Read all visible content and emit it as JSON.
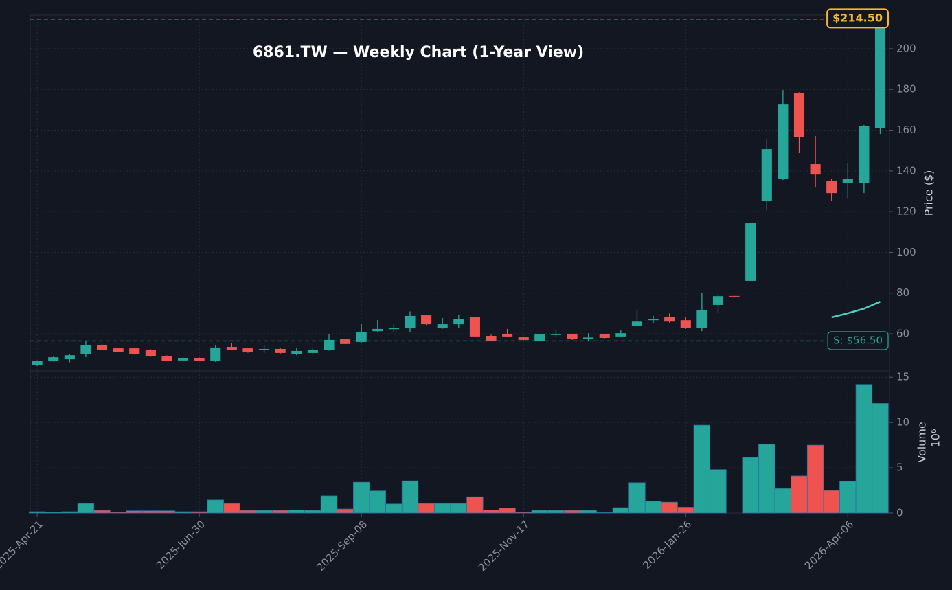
{
  "chart_data": [
    {
      "type": "candlestick",
      "title": "6861.TW — Weekly Chart (1-Year View)",
      "y_label": "Price ($)",
      "x": [
        "2025-04-21",
        "2025-04-28",
        "2025-05-05",
        "2025-05-12",
        "2025-05-19",
        "2025-05-26",
        "2025-06-02",
        "2025-06-09",
        "2025-06-16",
        "2025-06-23",
        "2025-06-30",
        "2025-07-07",
        "2025-07-14",
        "2025-07-21",
        "2025-07-28",
        "2025-08-04",
        "2025-08-11",
        "2025-08-18",
        "2025-08-25",
        "2025-09-01",
        "2025-09-08",
        "2025-09-15",
        "2025-09-22",
        "2025-09-29",
        "2025-10-06",
        "2025-10-13",
        "2025-10-20",
        "2025-10-27",
        "2025-11-03",
        "2025-11-10",
        "2025-11-17",
        "2025-11-24",
        "2025-12-01",
        "2025-12-08",
        "2025-12-15",
        "2025-12-22",
        "2025-12-29",
        "2026-01-05",
        "2026-01-12",
        "2026-01-19",
        "2026-01-26",
        "2026-02-02",
        "2026-02-09",
        "2026-02-16",
        "2026-02-23",
        "2026-03-02",
        "2026-03-09",
        "2026-03-16",
        "2026-03-23",
        "2026-03-30",
        "2026-04-06",
        "2026-04-13",
        "2026-04-20"
      ],
      "open": [
        44.6,
        46.5,
        47.5,
        50.2,
        54.3,
        52.9,
        52.9,
        52.2,
        49.2,
        46.9,
        48.2,
        46.8,
        53.6,
        52.9,
        52.0,
        52.6,
        50.2,
        50.6,
        52.0,
        57.3,
        56.0,
        61.3,
        62.3,
        62.7,
        69.1,
        62.7,
        64.7,
        68.1,
        59.0,
        59.7,
        58.3,
        56.6,
        59.4,
        59.7,
        57.6,
        59.7,
        58.7,
        64.0,
        66.7,
        68.1,
        66.7,
        63.0,
        74.2,
        78.6,
        86.0,
        125.4,
        135.9,
        178.4,
        143.3,
        134.9,
        133.9,
        133.9,
        161.2
      ],
      "high": [
        47.0,
        48.8,
        50.0,
        56.6,
        55.0,
        53.2,
        53.0,
        52.4,
        49.4,
        48.5,
        48.4,
        54.3,
        55.3,
        53.1,
        54.3,
        53.2,
        52.9,
        53.2,
        59.7,
        57.6,
        64.7,
        66.7,
        65.0,
        71.0,
        69.3,
        67.8,
        69.4,
        68.2,
        59.6,
        62.4,
        58.6,
        60.0,
        61.7,
        60.0,
        60.3,
        59.8,
        62.0,
        72.0,
        68.8,
        70.0,
        68.4,
        80.2,
        79.0,
        78.7,
        114.3,
        155.4,
        179.7,
        178.6,
        157.1,
        136.0,
        143.6,
        162.6,
        214.5
      ],
      "low": [
        44.2,
        46.4,
        46.0,
        48.5,
        51.8,
        51.0,
        49.8,
        48.7,
        46.6,
        46.5,
        46.6,
        46.2,
        52.0,
        50.7,
        50.6,
        50.3,
        49.5,
        50.3,
        51.8,
        54.8,
        55.5,
        61.0,
        61.0,
        60.7,
        64.3,
        62.5,
        63.0,
        58.5,
        56.4,
        58.5,
        56.8,
        56.5,
        58.7,
        57.0,
        56.6,
        57.8,
        58.5,
        64.0,
        65.4,
        65.5,
        62.4,
        61.3,
        70.5,
        78.3,
        86.0,
        120.7,
        135.5,
        148.7,
        132.2,
        125.1,
        126.4,
        129.1,
        158.1
      ],
      "close": [
        46.8,
        48.5,
        49.5,
        54.3,
        52.2,
        51.2,
        49.9,
        48.9,
        46.8,
        48.2,
        46.8,
        53.3,
        52.2,
        50.9,
        52.6,
        50.6,
        51.6,
        52.2,
        57.0,
        55.0,
        60.7,
        62.4,
        63.0,
        68.8,
        64.7,
        64.7,
        67.4,
        58.7,
        56.6,
        58.7,
        57.0,
        59.7,
        60.0,
        57.6,
        58.2,
        58.0,
        60.3,
        66.0,
        67.3,
        66.0,
        63.0,
        71.8,
        78.5,
        78.4,
        114.3,
        150.7,
        172.6,
        156.5,
        138.2,
        129.1,
        136.2,
        162.2,
        214.5
      ],
      "up_color": "#26a69a",
      "down_color": "#ef5350",
      "overlay_line": {
        "color": "#4dd0c4",
        "values": [
          null,
          null,
          null,
          null,
          null,
          null,
          null,
          null,
          null,
          null,
          null,
          null,
          null,
          null,
          null,
          null,
          null,
          null,
          null,
          null,
          null,
          null,
          null,
          null,
          null,
          null,
          null,
          null,
          null,
          null,
          null,
          null,
          null,
          null,
          null,
          null,
          null,
          null,
          null,
          null,
          null,
          null,
          null,
          null,
          null,
          null,
          null,
          null,
          null,
          68.1,
          70.1,
          72.4,
          75.8
        ]
      },
      "hlines": [
        {
          "value": 214.5,
          "label": "$214.50",
          "color": "#ef5350",
          "label_color": "#f5b82e"
        },
        {
          "value": 56.5,
          "label": "S: $56.50",
          "color": "#26a69a",
          "label_color": "#26a69a"
        }
      ],
      "xlim": [
        "2025-04-18",
        "2026-04-24"
      ],
      "xticks": [
        {
          "value": "2025-04-21",
          "label": "2025-Apr-21"
        },
        {
          "value": "2025-06-30",
          "label": "2025-Jun-30"
        },
        {
          "value": "2025-09-08",
          "label": "2025-Sep-08"
        },
        {
          "value": "2025-11-17",
          "label": "2025-Nov-17"
        },
        {
          "value": "2026-01-26",
          "label": "2026-Jan-26"
        },
        {
          "value": "2026-04-06",
          "label": "2026-Apr-06"
        }
      ],
      "ylim": [
        41.8,
        216.5
      ],
      "yticks": [
        60,
        80,
        100,
        120,
        140,
        160,
        180,
        200
      ],
      "grid": true
    },
    {
      "type": "volume",
      "y_label": "Volume",
      "y_scale_label": "10⁶",
      "values": [
        0.15,
        0.1,
        0.15,
        1.05,
        0.3,
        0.1,
        0.25,
        0.25,
        0.25,
        0.15,
        0.15,
        1.45,
        1.05,
        0.3,
        0.3,
        0.3,
        0.35,
        0.3,
        1.9,
        0.45,
        3.4,
        2.45,
        1.0,
        3.55,
        1.05,
        1.05,
        1.05,
        1.8,
        0.35,
        0.55,
        0.1,
        0.3,
        0.3,
        0.3,
        0.3,
        0.05,
        0.6,
        3.35,
        1.3,
        1.2,
        0.65,
        9.7,
        4.8,
        0,
        6.15,
        7.6,
        2.7,
        4.1,
        7.5,
        2.5,
        3.5,
        14.2,
        12.1
      ],
      "ylim": [
        0,
        15.7
      ],
      "yticks": [
        0,
        5,
        10,
        15
      ],
      "grid": true
    }
  ]
}
